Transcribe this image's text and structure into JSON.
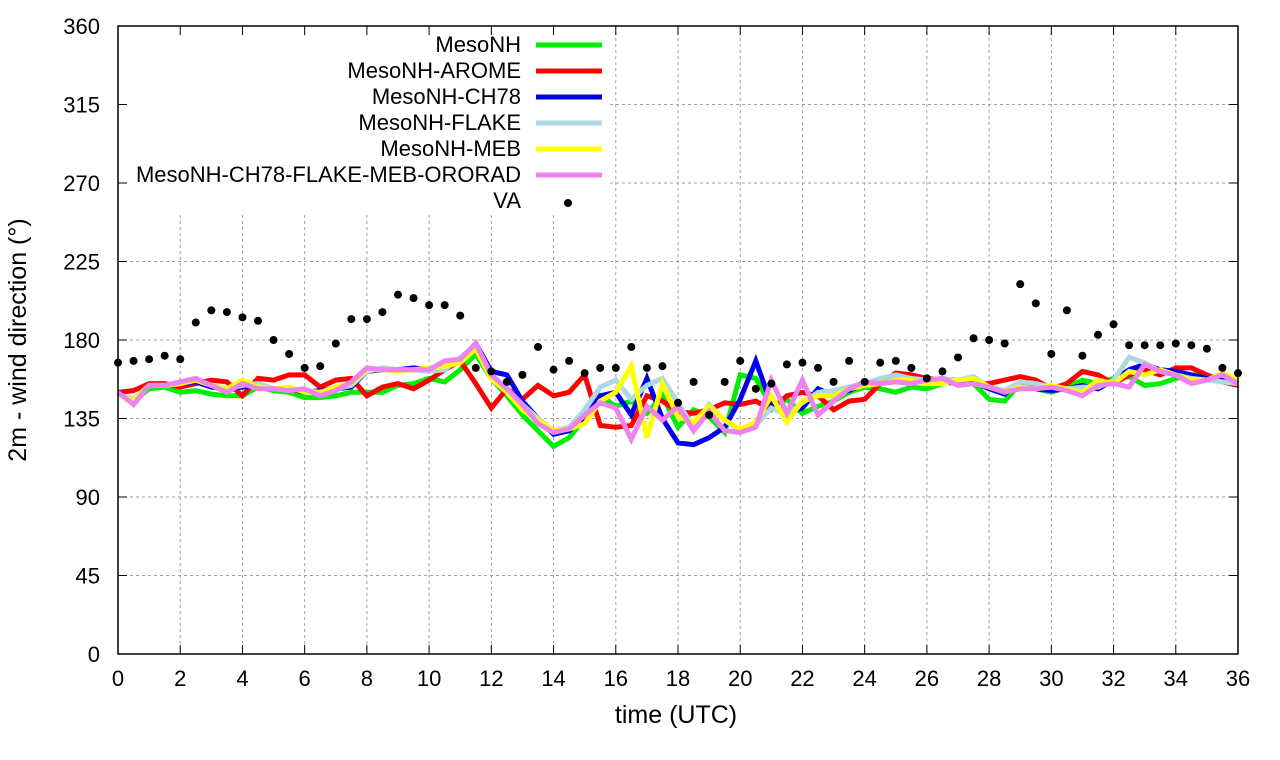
{
  "chart_data": {
    "type": "line",
    "title": "",
    "xlabel": "time (UTC)",
    "ylabel": "2m - wind direction (°)",
    "xlim": [
      0,
      36
    ],
    "ylim": [
      0,
      360
    ],
    "grid": true,
    "legend_position": "top-left",
    "x_ticks": [
      "0",
      "2",
      "4",
      "6",
      "8",
      "10",
      "12",
      "14",
      "16",
      "18",
      "20",
      "22",
      "24",
      "26",
      "28",
      "30",
      "32",
      "34",
      "36"
    ],
    "y_ticks": [
      "0",
      "45",
      "90",
      "135",
      "180",
      "225",
      "270",
      "315",
      "360"
    ],
    "x": [
      0,
      0.5,
      1,
      1.5,
      2,
      2.5,
      3,
      3.5,
      4,
      4.5,
      5,
      5.5,
      6,
      6.5,
      7,
      7.5,
      8,
      8.5,
      9,
      9.5,
      10,
      10.5,
      11,
      11.5,
      12,
      12.5,
      13,
      13.5,
      14,
      14.5,
      15,
      15.5,
      16,
      16.5,
      17,
      17.5,
      18,
      18.5,
      19,
      19.5,
      20,
      20.5,
      21,
      21.5,
      22,
      22.5,
      23,
      23.5,
      24,
      24.5,
      25,
      25.5,
      26,
      26.5,
      27,
      27.5,
      28,
      28.5,
      29,
      29.5,
      30,
      30.5,
      31,
      31.5,
      32,
      32.5,
      33,
      33.5,
      34,
      34.5,
      35,
      35.5,
      36
    ],
    "series": [
      {
        "name": "MesoNH",
        "color": "#00ee00",
        "style": "line",
        "values": [
          149,
          145,
          152,
          153,
          150,
          151,
          149,
          148,
          148,
          153,
          151,
          150,
          147,
          147,
          148,
          150,
          150,
          150,
          154,
          155,
          158,
          156,
          163,
          172,
          158,
          148,
          137,
          128,
          119,
          124,
          135,
          148,
          142,
          145,
          138,
          148,
          130,
          140,
          136,
          127,
          160,
          158,
          142,
          146,
          138,
          142,
          145,
          150,
          153,
          152,
          150,
          153,
          152,
          155,
          157,
          155,
          146,
          145,
          155,
          152,
          150,
          153,
          157,
          155,
          158,
          159,
          154,
          155,
          158,
          160,
          160,
          157,
          156
        ]
      },
      {
        "name": "MesoNH-AROME",
        "color": "#ff0000",
        "style": "line",
        "values": [
          150,
          151,
          155,
          155,
          153,
          155,
          157,
          156,
          148,
          158,
          157,
          160,
          160,
          153,
          157,
          158,
          148,
          153,
          155,
          152,
          157,
          163,
          168,
          155,
          141,
          152,
          146,
          154,
          148,
          150,
          160,
          131,
          130,
          131,
          148,
          145,
          139,
          138,
          140,
          144,
          143,
          145,
          140,
          148,
          150,
          148,
          140,
          145,
          146,
          155,
          161,
          160,
          158,
          157,
          156,
          155,
          155,
          157,
          159,
          157,
          152,
          155,
          162,
          160,
          155,
          160,
          163,
          160,
          164,
          164,
          160,
          156,
          154
        ]
      },
      {
        "name": "MesoNH-CH78",
        "color": "#0000ee",
        "style": "line",
        "values": [
          150,
          145,
          154,
          154,
          155,
          156,
          153,
          152,
          153,
          154,
          152,
          152,
          150,
          151,
          152,
          153,
          162,
          163,
          163,
          164,
          163,
          164,
          168,
          178,
          162,
          160,
          145,
          135,
          126,
          128,
          135,
          148,
          150,
          137,
          158,
          135,
          121,
          120,
          124,
          130,
          146,
          168,
          143,
          138,
          141,
          152,
          148,
          151,
          155,
          155,
          157,
          158,
          157,
          156,
          155,
          156,
          152,
          149,
          155,
          152,
          151,
          152,
          154,
          152,
          157,
          163,
          166,
          163,
          162,
          160,
          158,
          158,
          155
        ]
      },
      {
        "name": "MesoNH-FLAKE",
        "color": "#add8e6",
        "style": "line",
        "values": [
          149,
          146,
          154,
          154,
          155,
          157,
          154,
          152,
          154,
          155,
          152,
          152,
          151,
          150,
          152,
          154,
          162,
          164,
          163,
          163,
          162,
          163,
          170,
          177,
          160,
          152,
          143,
          135,
          128,
          130,
          140,
          153,
          157,
          146,
          154,
          158,
          144,
          130,
          143,
          134,
          128,
          131,
          141,
          137,
          144,
          150,
          151,
          153,
          155,
          158,
          160,
          158,
          157,
          158,
          157,
          159,
          153,
          151,
          156,
          155,
          153,
          152,
          153,
          153,
          157,
          170,
          167,
          162,
          160,
          158,
          157,
          156,
          155
        ]
      },
      {
        "name": "MesoNH-MEB",
        "color": "#ffff00",
        "style": "line",
        "values": [
          149,
          145,
          154,
          154,
          155,
          157,
          154,
          152,
          157,
          153,
          152,
          153,
          150,
          150,
          153,
          155,
          163,
          163,
          162,
          163,
          164,
          165,
          167,
          175,
          158,
          150,
          140,
          134,
          128,
          129,
          132,
          145,
          150,
          165,
          124,
          155,
          136,
          133,
          142,
          134,
          129,
          133,
          148,
          133,
          145,
          148,
          148,
          152,
          154,
          155,
          157,
          157,
          155,
          155,
          157,
          158,
          153,
          150,
          153,
          152,
          154,
          152,
          150,
          157,
          155,
          162,
          160,
          163,
          160,
          157,
          157,
          161,
          157
        ]
      },
      {
        "name": "MesoNH-CH78-FLAKE-MEB-ORORAD",
        "color": "#ee82ee",
        "style": "line",
        "values": [
          150,
          143,
          154,
          154,
          156,
          158,
          154,
          150,
          155,
          152,
          152,
          151,
          152,
          148,
          151,
          156,
          164,
          163,
          163,
          163,
          163,
          168,
          169,
          178,
          160,
          152,
          143,
          132,
          127,
          129,
          137,
          144,
          141,
          123,
          142,
          134,
          142,
          128,
          139,
          128,
          127,
          130,
          157,
          138,
          157,
          137,
          145,
          152,
          156,
          155,
          156,
          155,
          157,
          158,
          154,
          155,
          153,
          150,
          152,
          152,
          153,
          151,
          148,
          154,
          155,
          153,
          166,
          162,
          160,
          155,
          157,
          160,
          155
        ]
      },
      {
        "name": "VA",
        "color": "#000000",
        "style": "points",
        "values": [
          167,
          168,
          169,
          171,
          169,
          190,
          197,
          196,
          193,
          191,
          180,
          172,
          164,
          165,
          178,
          192,
          192,
          196,
          206,
          204,
          200,
          200,
          194,
          164,
          162,
          156,
          160,
          176,
          163,
          168,
          161,
          164,
          164,
          176,
          164,
          165,
          144,
          156,
          137,
          156,
          168,
          152,
          155,
          166,
          167,
          164,
          156,
          168,
          156,
          167,
          168,
          164,
          158,
          162,
          170,
          181,
          180,
          178,
          212,
          201,
          172,
          197,
          171,
          183,
          189,
          177,
          177,
          177,
          178,
          177,
          175,
          164,
          161
        ]
      }
    ]
  }
}
